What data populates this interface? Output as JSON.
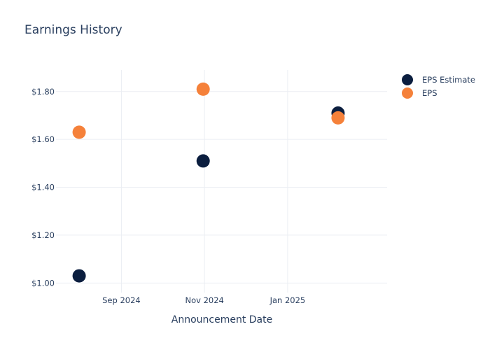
{
  "chart_data": {
    "type": "scatter",
    "title": "Earnings History",
    "xlabel": "Announcement Date",
    "ylabel": "",
    "x_type": "date",
    "xlim": [
      "2024-07-15",
      "2025-03-15"
    ],
    "ylim": [
      0.96,
      1.89
    ],
    "x_ticks": [
      {
        "date": "2024-09-01",
        "label": "Sep 2024"
      },
      {
        "date": "2024-11-01",
        "label": "Nov 2024"
      },
      {
        "date": "2025-01-01",
        "label": "Jan 2025"
      }
    ],
    "y_ticks": [
      {
        "value": 1.0,
        "label": "$1.00"
      },
      {
        "value": 1.2,
        "label": "$1.20"
      },
      {
        "value": 1.4,
        "label": "$1.40"
      },
      {
        "value": 1.6,
        "label": "$1.60"
      },
      {
        "value": 1.8,
        "label": "$1.80"
      }
    ],
    "grid": true,
    "legend_position": "top-right",
    "series": [
      {
        "name": "EPS Estimate",
        "color": "#0b1e3f",
        "points": [
          {
            "x": "2024-08-01",
            "y": 1.03
          },
          {
            "x": "2024-10-31",
            "y": 1.51
          },
          {
            "x": "2025-02-07",
            "y": 1.71
          }
        ]
      },
      {
        "name": "EPS",
        "color": "#f5813a",
        "points": [
          {
            "x": "2024-08-01",
            "y": 1.63
          },
          {
            "x": "2024-10-31",
            "y": 1.81
          },
          {
            "x": "2025-02-07",
            "y": 1.69
          }
        ]
      }
    ]
  }
}
